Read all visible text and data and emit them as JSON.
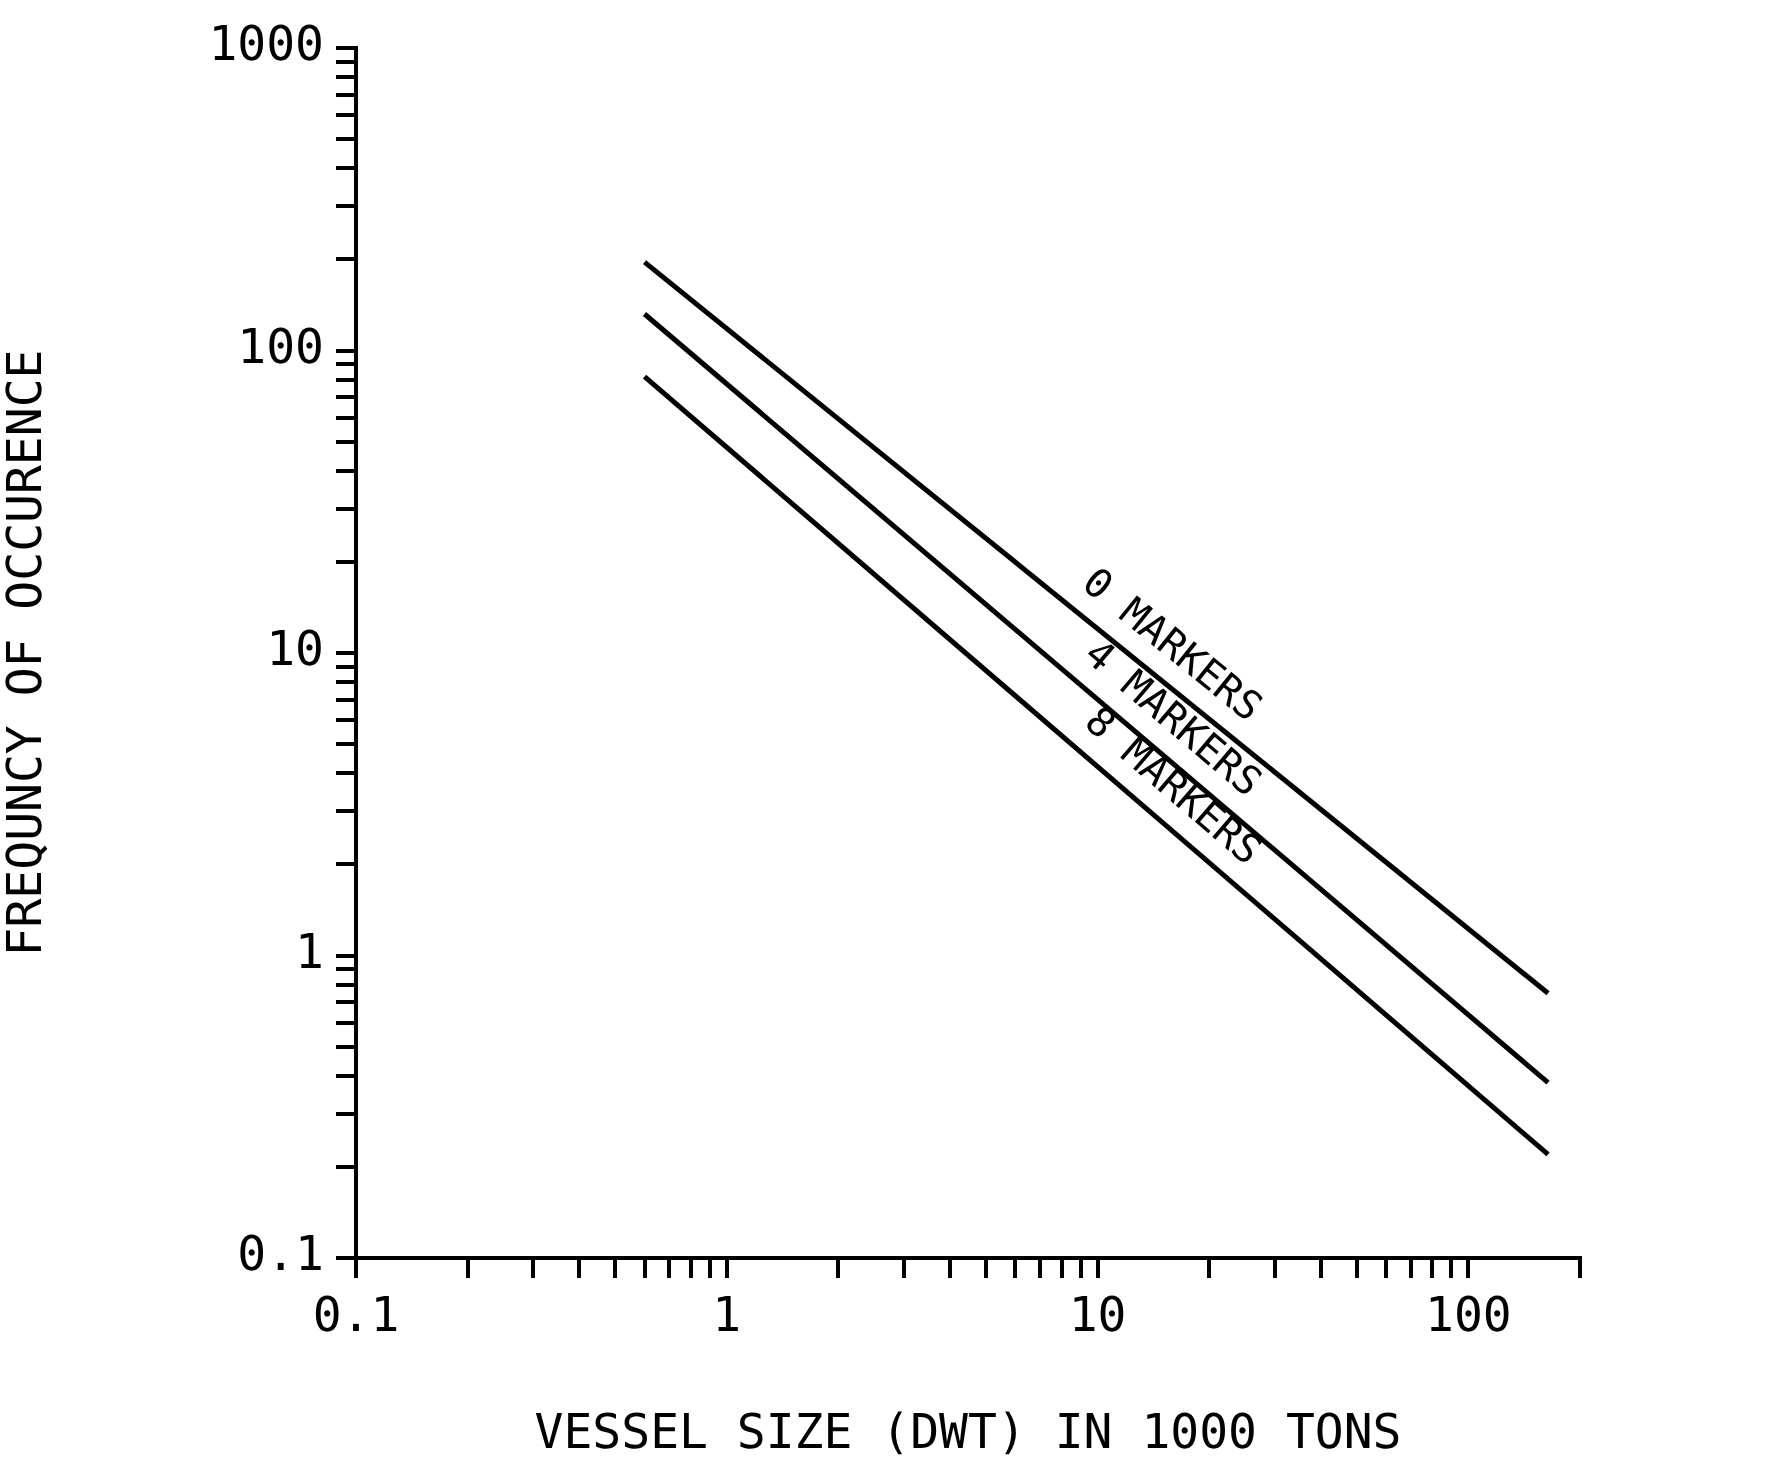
{
  "chart_data": {
    "type": "line",
    "xlabel": "VESSEL SIZE (DWT) IN 1000 TONS",
    "ylabel": "FREQUNCY OF OCCURENCE",
    "log": "xy",
    "grid": false,
    "legend": false,
    "marker": "none",
    "line_style": "solid",
    "x": [
      0.6,
      164
    ],
    "series": [
      {
        "color": "#000000",
        "values": [
          196,
          0.75
        ]
      },
      {
        "color": "#000000",
        "values": [
          132,
          0.38
        ]
      },
      {
        "color": "#000000",
        "values": [
          82,
          0.22
        ]
      }
    ],
    "xlim": [
      0.1,
      200
    ],
    "xticks": [
      {
        "value": 0.1,
        "label": "0.1"
      },
      {
        "value": 0.2,
        "label": null
      },
      {
        "value": 0.3,
        "label": null
      },
      {
        "value": 0.4,
        "label": null
      },
      {
        "value": 0.5,
        "label": null
      },
      {
        "value": 0.6,
        "label": null
      },
      {
        "value": 0.7,
        "label": null
      },
      {
        "value": 0.8,
        "label": null
      },
      {
        "value": 0.9,
        "label": null
      },
      1,
      {
        "value": 2,
        "label": null
      },
      {
        "value": 3,
        "label": null
      },
      {
        "value": 4,
        "label": null
      },
      {
        "value": 5,
        "label": null
      },
      {
        "value": 6,
        "label": null
      },
      {
        "value": 7,
        "label": null
      },
      {
        "value": 8,
        "label": null
      },
      {
        "value": 9,
        "label": null
      },
      10,
      {
        "value": 20,
        "label": null
      },
      {
        "value": 30,
        "label": null
      },
      {
        "value": 40,
        "label": null
      },
      {
        "value": 50,
        "label": null
      },
      {
        "value": 60,
        "label": null
      },
      {
        "value": 70,
        "label": null
      },
      {
        "value": 80,
        "label": null
      },
      {
        "value": 90,
        "label": null
      },
      100,
      {
        "value": 200,
        "label": null
      }
    ],
    "ylim": [
      0.1,
      1000
    ],
    "yticks": [
      {
        "value": 0.1,
        "label": "0.1"
      },
      {
        "value": 0.2,
        "label": null
      },
      {
        "value": 0.3,
        "label": null
      },
      {
        "value": 0.4,
        "label": null
      },
      {
        "value": 0.5,
        "label": null
      },
      {
        "value": 0.6,
        "label": null
      },
      {
        "value": 0.7,
        "label": null
      },
      {
        "value": 0.8,
        "label": null
      },
      {
        "value": 0.9,
        "label": null
      },
      1,
      {
        "value": 2,
        "label": null
      },
      {
        "value": 3,
        "label": null
      },
      {
        "value": 4,
        "label": null
      },
      {
        "value": 5,
        "label": null
      },
      {
        "value": 6,
        "label": null
      },
      {
        "value": 7,
        "label": null
      },
      {
        "value": 8,
        "label": null
      },
      {
        "value": 9,
        "label": null
      },
      10,
      {
        "value": 20,
        "label": null
      },
      {
        "value": 30,
        "label": null
      },
      {
        "value": 40,
        "label": null
      },
      {
        "value": 50,
        "label": null
      },
      {
        "value": 60,
        "label": null
      },
      {
        "value": 70,
        "label": null
      },
      {
        "value": 80,
        "label": null
      },
      {
        "value": 90,
        "label": null
      },
      100,
      {
        "value": 200,
        "label": null
      },
      {
        "value": 300,
        "label": null
      },
      {
        "value": 400,
        "label": null
      },
      {
        "value": 500,
        "label": null
      },
      {
        "value": 600,
        "label": null
      },
      {
        "value": 700,
        "label": null
      },
      {
        "value": 800,
        "label": null
      },
      {
        "value": 900,
        "label": null
      },
      1000
    ],
    "annotations": [
      "0 MARKERS",
      "4 MARKERS",
      "8 MARKERS"
    ]
  }
}
